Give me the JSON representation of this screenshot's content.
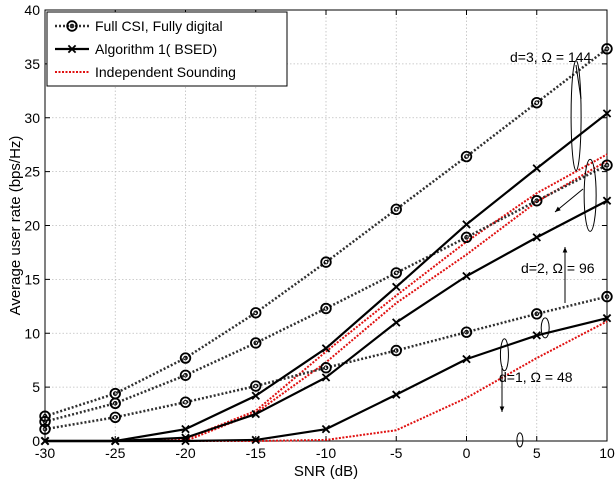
{
  "chart_data": {
    "type": "line",
    "xlabel": "SNR (dB)",
    "ylabel": "Average user rate (bps/Hz)",
    "xlim": [
      -30,
      10
    ],
    "ylim": [
      0,
      40
    ],
    "xticks": [
      -30,
      -25,
      -20,
      -15,
      -10,
      -5,
      0,
      5,
      10
    ],
    "yticks": [
      0,
      5,
      10,
      15,
      20,
      25,
      30,
      35,
      40
    ],
    "grid": true,
    "legend_position": "top-left",
    "legend": [
      {
        "label": "Full CSI, Fully digital",
        "style": "dotted-circle"
      },
      {
        "label": "Algorithm 1( BSED)",
        "style": "solid-x"
      },
      {
        "label": "Independent Sounding",
        "style": "red-dotted"
      }
    ],
    "x": [
      -30,
      -25,
      -20,
      -15,
      -10,
      -5,
      0,
      5,
      10
    ],
    "series": [
      {
        "group": "d=3",
        "style": "dotted-circle",
        "values": [
          2.3,
          4.4,
          7.7,
          11.9,
          16.6,
          21.5,
          26.4,
          31.4,
          36.4
        ]
      },
      {
        "group": "d=2",
        "style": "dotted-circle",
        "values": [
          1.8,
          3.5,
          6.1,
          9.1,
          12.3,
          15.6,
          18.9,
          22.3,
          25.6
        ]
      },
      {
        "group": "d=1",
        "style": "dotted-circle",
        "values": [
          1.1,
          2.2,
          3.6,
          5.1,
          6.8,
          8.4,
          10.1,
          11.8,
          13.4
        ]
      },
      {
        "group": "d=3",
        "style": "solid-x",
        "values": [
          0.0,
          0.0,
          1.1,
          4.2,
          8.6,
          14.3,
          20.1,
          25.3,
          30.4
        ]
      },
      {
        "group": "d=2",
        "style": "solid-x",
        "values": [
          0.0,
          0.0,
          0.3,
          2.5,
          5.9,
          11.0,
          15.3,
          18.9,
          22.3
        ]
      },
      {
        "group": "d=1",
        "style": "solid-x",
        "values": [
          0.0,
          0.0,
          0.0,
          0.1,
          1.1,
          4.3,
          7.6,
          9.8,
          11.4
        ]
      },
      {
        "group": "d=3",
        "style": "red-dotted",
        "values": [
          0.0,
          0.0,
          0.2,
          2.8,
          8.3,
          13.5,
          18.5,
          23.0,
          26.6
        ]
      },
      {
        "group": "d=2",
        "style": "red-dotted",
        "values": [
          0.0,
          0.0,
          0.0,
          2.6,
          7.3,
          12.8,
          17.3,
          22.2,
          26.0
        ]
      },
      {
        "group": "d=1",
        "style": "red-dotted",
        "values": [
          0.0,
          0.0,
          0.0,
          0.0,
          0.1,
          1.0,
          4.0,
          7.7,
          11.1
        ]
      }
    ],
    "annotations": [
      {
        "text": "d=3, Ω = 144"
      },
      {
        "text": "d=2, Ω = 96"
      },
      {
        "text": "d=1, Ω = 48"
      }
    ]
  }
}
